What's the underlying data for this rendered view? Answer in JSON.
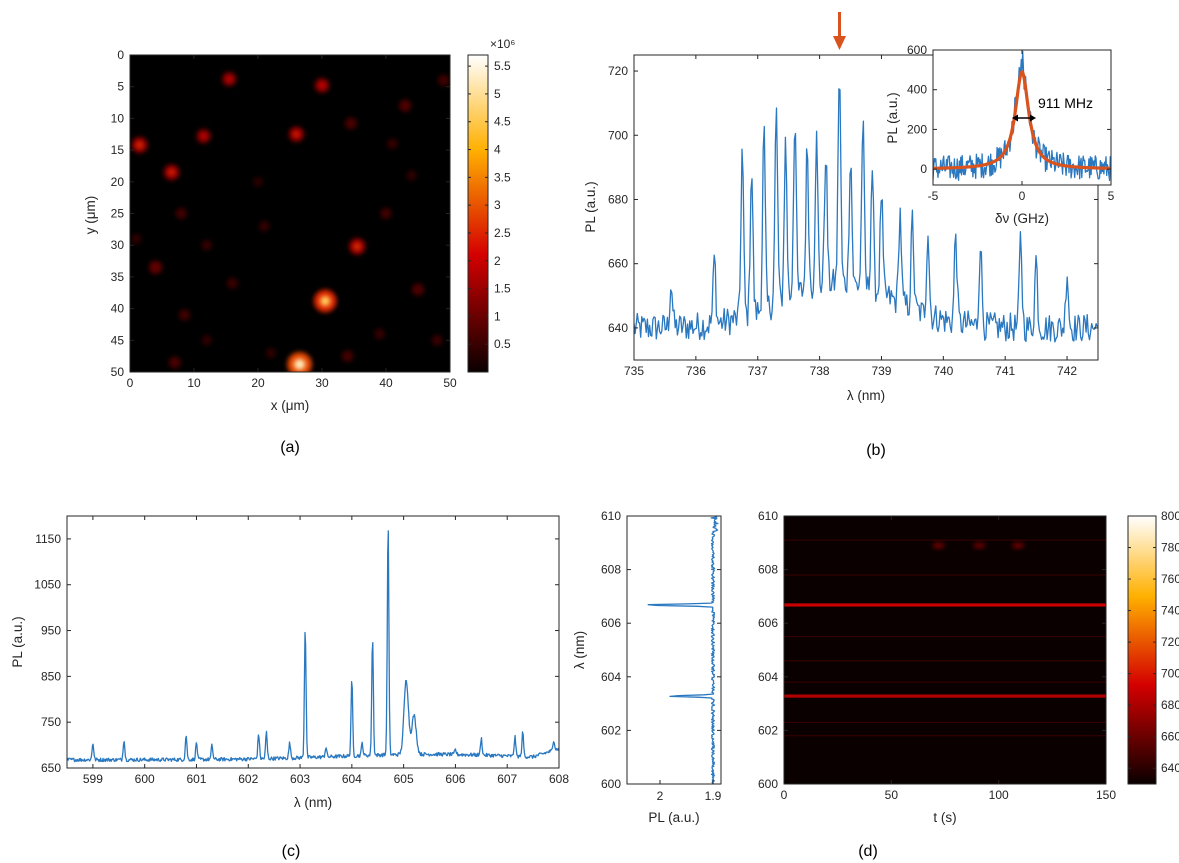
{
  "panel_labels": [
    "(a)",
    "(b)",
    "(c)",
    "(d)"
  ],
  "colors": {
    "series": "#2a78c0",
    "fit": "#d9531e",
    "arrow": "#d9531e",
    "axis": "#262626"
  },
  "chart_data": [
    {
      "id": "a",
      "type": "heatmap",
      "xlabel": "x (μm)",
      "ylabel": "y (μm)",
      "xlim": [
        0,
        50
      ],
      "ylim": [
        50,
        0
      ],
      "xticks": [
        "0",
        "10",
        "20",
        "30",
        "40",
        "50"
      ],
      "yticks": [
        "0",
        "5",
        "10",
        "15",
        "20",
        "25",
        "30",
        "35",
        "40",
        "45",
        "50"
      ],
      "colorbar": {
        "exponent": "×10⁶",
        "ticks": [
          "0.5",
          "1",
          "1.5",
          "2",
          "2.5",
          "3",
          "3.5",
          "4",
          "4.5",
          "5",
          "5.5"
        ],
        "range": [
          0,
          5.7
        ]
      },
      "spots": [
        {
          "x": 26.5,
          "y": 48.8,
          "v": 5.2
        },
        {
          "x": 30.5,
          "y": 38.8,
          "v": 4.6
        },
        {
          "x": 35.5,
          "y": 30.2,
          "v": 2.6
        },
        {
          "x": 1.5,
          "y": 14.2,
          "v": 2.5
        },
        {
          "x": 6.5,
          "y": 18.5,
          "v": 2.4
        },
        {
          "x": 26.0,
          "y": 12.5,
          "v": 2.3
        },
        {
          "x": 15.5,
          "y": 3.8,
          "v": 2.0
        },
        {
          "x": 30.0,
          "y": 4.8,
          "v": 2.1
        },
        {
          "x": 11.5,
          "y": 12.8,
          "v": 2.0
        },
        {
          "x": 4.0,
          "y": 33.5,
          "v": 1.6
        },
        {
          "x": 43.0,
          "y": 8.0,
          "v": 1.3
        },
        {
          "x": 34.5,
          "y": 10.8,
          "v": 1.2
        },
        {
          "x": 45.0,
          "y": 37.0,
          "v": 1.3
        },
        {
          "x": 7.0,
          "y": 48.5,
          "v": 1.2
        },
        {
          "x": 34.0,
          "y": 47.5,
          "v": 1.1
        },
        {
          "x": 49.0,
          "y": 4.0,
          "v": 1.0
        },
        {
          "x": 40.0,
          "y": 25.0,
          "v": 1.0
        },
        {
          "x": 8.5,
          "y": 41.0,
          "v": 1.0
        },
        {
          "x": 8.0,
          "y": 25.0,
          "v": 1.0
        },
        {
          "x": 16.0,
          "y": 36.0,
          "v": 0.9
        },
        {
          "x": 21.0,
          "y": 27.0,
          "v": 0.8
        },
        {
          "x": 48.0,
          "y": 45.0,
          "v": 0.9
        },
        {
          "x": 12.0,
          "y": 30.0,
          "v": 0.8
        },
        {
          "x": 41.0,
          "y": 14.0,
          "v": 0.8
        },
        {
          "x": 39.0,
          "y": 44.0,
          "v": 0.8
        },
        {
          "x": 1.0,
          "y": 29.0,
          "v": 0.7
        },
        {
          "x": 22.0,
          "y": 47.0,
          "v": 0.7
        },
        {
          "x": 12.0,
          "y": 45.0,
          "v": 0.7
        },
        {
          "x": 44.0,
          "y": 19.0,
          "v": 0.7
        },
        {
          "x": 20.0,
          "y": 20.0,
          "v": 0.6
        }
      ]
    },
    {
      "id": "b",
      "type": "line",
      "xlabel": "λ (nm)",
      "ylabel": "PL (a.u.)",
      "xlim": [
        735,
        742.5
      ],
      "ylim": [
        630,
        725
      ],
      "xticks": [
        735,
        736,
        737,
        738,
        739,
        740,
        741,
        742
      ],
      "yticks": [
        640,
        660,
        680,
        700,
        720
      ],
      "peaks": [
        [
          736.75,
          696
        ],
        [
          736.9,
          690
        ],
        [
          737.1,
          702
        ],
        [
          737.3,
          708
        ],
        [
          737.45,
          698
        ],
        [
          737.6,
          706
        ],
        [
          737.8,
          697
        ],
        [
          737.95,
          699
        ],
        [
          738.1,
          695
        ],
        [
          738.32,
          721
        ],
        [
          738.5,
          694
        ],
        [
          738.7,
          704
        ],
        [
          738.85,
          690
        ],
        [
          739.0,
          682
        ],
        [
          739.3,
          676
        ],
        [
          739.5,
          674
        ],
        [
          739.75,
          671
        ],
        [
          740.2,
          670
        ],
        [
          740.6,
          667
        ],
        [
          741.25,
          668
        ],
        [
          741.5,
          662
        ],
        [
          742.0,
          658
        ],
        [
          736.3,
          662
        ],
        [
          735.6,
          654
        ]
      ],
      "inset": {
        "type": "line",
        "xlabel": "δν (GHz)",
        "ylabel": "PL (a.u.)",
        "xlim": [
          -5,
          5
        ],
        "ylim": [
          -80,
          600
        ],
        "xticks": [
          -5,
          0,
          5
        ],
        "yticks": [
          0,
          200,
          400,
          600
        ],
        "fit": {
          "center": 0,
          "fwhm": 0.911,
          "amplitude": 490
        },
        "annotation": "911 MHz"
      }
    },
    {
      "id": "c",
      "type": "line",
      "xlabel": "λ (nm)",
      "ylabel": "PL (a.u.)",
      "xlim": [
        598.5,
        608
      ],
      "ylim": [
        650,
        1200
      ],
      "xticks": [
        599,
        600,
        601,
        602,
        603,
        604,
        605,
        606,
        607,
        608
      ],
      "yticks": [
        650,
        750,
        850,
        950,
        1050,
        1150
      ],
      "peaks": [
        [
          599.0,
          705
        ],
        [
          599.6,
          712
        ],
        [
          600.8,
          722
        ],
        [
          601.0,
          705
        ],
        [
          601.3,
          700
        ],
        [
          602.2,
          725
        ],
        [
          602.35,
          728
        ],
        [
          602.8,
          705
        ],
        [
          603.1,
          957
        ],
        [
          603.5,
          695
        ],
        [
          604.0,
          840
        ],
        [
          604.2,
          705
        ],
        [
          604.4,
          932
        ],
        [
          604.7,
          1182
        ],
        [
          605.05,
          843
        ],
        [
          605.2,
          765
        ],
        [
          606.0,
          690
        ],
        [
          606.5,
          715
        ],
        [
          607.15,
          718
        ],
        [
          607.3,
          727
        ],
        [
          607.9,
          712
        ]
      ]
    },
    {
      "id": "d-left",
      "type": "line",
      "xlabel": "PL (a.u.)",
      "ylabel": "λ (nm)",
      "xticks": [
        "2",
        "1.9"
      ],
      "ylim": [
        600,
        610
      ],
      "yticks": [
        600,
        602,
        604,
        606,
        608,
        610
      ],
      "peaks": [
        [
          606.68,
          1
        ],
        [
          603.28,
          0.65
        ]
      ]
    },
    {
      "id": "d",
      "type": "heatmap",
      "xlabel": "t (s)",
      "ylabel": "",
      "xlim": [
        0,
        150
      ],
      "ylim": [
        600,
        610
      ],
      "xticks": [
        0,
        50,
        100,
        150
      ],
      "yticks": [
        600,
        602,
        604,
        606,
        608,
        610
      ],
      "colorbar": {
        "ticks": [
          640,
          660,
          680,
          700,
          720,
          740,
          760,
          780,
          800
        ],
        "range": [
          630,
          800
        ]
      },
      "lines": [
        {
          "lambda": 606.68,
          "value": 690
        },
        {
          "lambda": 603.28,
          "value": 682
        }
      ],
      "blobs": [
        {
          "t": 72,
          "lambda": 608.9,
          "value": 662
        },
        {
          "t": 91,
          "lambda": 608.9,
          "value": 660
        },
        {
          "t": 109,
          "lambda": 608.9,
          "value": 662
        }
      ]
    }
  ]
}
